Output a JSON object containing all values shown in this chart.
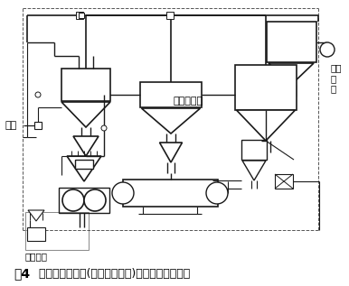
{
  "caption_fig": "图4",
  "caption_text": "  辊压机和球磨机(带涡流选粉机)联合粉磨系统流程",
  "bg_color": "#f0ece6",
  "lc": "#3a3530",
  "fig_width": 3.86,
  "fig_height": 3.17,
  "dpi": 100,
  "label_lengfeng": "冷风",
  "label_woliufen": "涡流选粉机",
  "label_rushi_ni_ku": "入水\n泥\n库",
  "label_peiliao": "自配料站"
}
